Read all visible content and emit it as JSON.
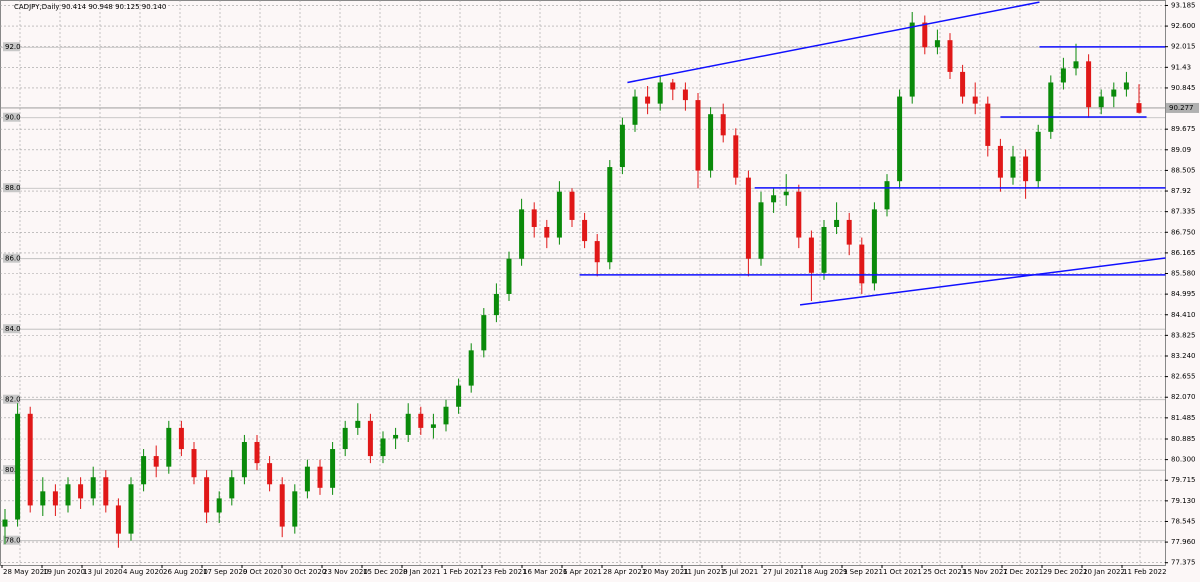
{
  "chart_data": {
    "type": "candlestick",
    "title": "CADJPY,Daily  90.414 90.948 90.125 90.140",
    "ylim": [
      77.31,
      93.34
    ],
    "yticks": [
      93.185,
      {
        "value": 92.6,
        "label": "92.600"
      },
      92.015,
      91.43,
      90.845,
      89.675,
      89.09,
      88.505,
      87.92,
      87.335,
      {
        "value": 86.75,
        "label": "86.750"
      },
      86.165,
      {
        "value": 85.58,
        "label": "85.580"
      },
      84.995,
      {
        "value": 84.41,
        "label": "84.410"
      },
      83.825,
      {
        "value": 83.24,
        "label": "83.240"
      },
      82.655,
      {
        "value": 82.07,
        "label": "82.070"
      },
      81.485,
      80.885,
      {
        "value": 80.3,
        "label": "80.300"
      },
      79.715,
      {
        "value": 79.13,
        "label": "79.130"
      },
      78.545,
      {
        "value": 77.96,
        "label": "77.960"
      },
      77.375
    ],
    "levels": [
      {
        "value": 92,
        "label": "92.0"
      },
      {
        "value": 90,
        "label": "90.0"
      },
      {
        "value": 88,
        "label": "88.0"
      },
      {
        "value": 86,
        "label": "86.0"
      },
      {
        "value": 84,
        "label": "84.0"
      },
      {
        "value": 82,
        "label": "82.0"
      },
      {
        "value": 80,
        "label": "80.0"
      },
      {
        "value": 78,
        "label": "78.0"
      }
    ],
    "price_line": 90.277,
    "xlabels": [
      "28 May 2020",
      "19 Jun 2020",
      "13 Jul 2020",
      "4 Aug 2020",
      "26 Aug 2020",
      "17 Sep 2020",
      "9 Oct 2020",
      "30 Oct 2020",
      "23 Nov 2020",
      "15 Dec 2020",
      "8 Jan 2021",
      "1 Feb 2021",
      "23 Feb 2021",
      "16 Mar 2021",
      "6 Apr 2021",
      "28 Apr 2021",
      "20 May 2021",
      "11 Jun 2021",
      "5 Jul 2021",
      "27 Jul 2021",
      "18 Aug 2021",
      "9 Sep 2021",
      "1 Oct 2021",
      "25 Oct 2021",
      "15 Nov 2021",
      "7 Dec 2021",
      "29 Dec 2021",
      "20 Jan 2022",
      "11 Feb 2022"
    ],
    "up_color": "#0a8a0a",
    "down_color": "#e01818",
    "line_color": "#1010ff",
    "candles": [
      [
        78.4,
        78.9,
        77.9,
        78.6
      ],
      [
        78.6,
        81.9,
        78.4,
        81.6
      ],
      [
        81.6,
        81.8,
        78.8,
        79.0
      ],
      [
        79.0,
        79.8,
        78.7,
        79.4
      ],
      [
        79.4,
        79.6,
        78.7,
        79.0
      ],
      [
        79.0,
        79.8,
        78.8,
        79.6
      ],
      [
        79.6,
        79.8,
        78.9,
        79.2
      ],
      [
        79.2,
        80.1,
        79.0,
        79.8
      ],
      [
        79.8,
        80.0,
        78.8,
        79.0
      ],
      [
        79.0,
        79.2,
        77.8,
        78.2
      ],
      [
        78.2,
        79.8,
        78.0,
        79.6
      ],
      [
        79.6,
        80.6,
        79.4,
        80.4
      ],
      [
        80.4,
        80.7,
        79.8,
        80.1
      ],
      [
        80.1,
        81.4,
        79.9,
        81.2
      ],
      [
        81.2,
        81.4,
        80.4,
        80.6
      ],
      [
        80.6,
        80.8,
        79.6,
        79.8
      ],
      [
        79.8,
        80.0,
        78.5,
        78.8
      ],
      [
        78.8,
        79.4,
        78.5,
        79.2
      ],
      [
        79.2,
        80.0,
        79.0,
        79.8
      ],
      [
        79.8,
        81.0,
        79.6,
        80.8
      ],
      [
        80.8,
        81.0,
        80.0,
        80.2
      ],
      [
        80.2,
        80.4,
        79.4,
        79.6
      ],
      [
        79.6,
        79.8,
        78.1,
        78.4
      ],
      [
        78.4,
        79.6,
        78.2,
        79.4
      ],
      [
        79.4,
        80.3,
        79.2,
        80.1
      ],
      [
        80.1,
        80.3,
        79.3,
        79.5
      ],
      [
        79.5,
        80.8,
        79.3,
        80.6
      ],
      [
        80.6,
        81.4,
        80.4,
        81.2
      ],
      [
        81.2,
        81.9,
        81.0,
        81.4
      ],
      [
        81.4,
        81.6,
        80.2,
        80.4
      ],
      [
        80.4,
        81.1,
        80.2,
        80.9
      ],
      [
        80.9,
        81.2,
        80.6,
        81.0
      ],
      [
        81.0,
        81.9,
        80.8,
        81.6
      ],
      [
        81.6,
        81.8,
        81.0,
        81.2
      ],
      [
        81.2,
        81.6,
        80.9,
        81.3
      ],
      [
        81.3,
        82.0,
        81.1,
        81.8
      ],
      [
        81.8,
        82.6,
        81.6,
        82.4
      ],
      [
        82.4,
        83.6,
        82.2,
        83.4
      ],
      [
        83.4,
        84.6,
        83.2,
        84.4
      ],
      [
        84.4,
        85.3,
        84.2,
        85.0
      ],
      [
        85.0,
        86.2,
        84.8,
        86.0
      ],
      [
        86.0,
        87.7,
        85.8,
        87.4
      ],
      [
        87.4,
        87.6,
        86.6,
        86.9
      ],
      [
        86.9,
        87.1,
        86.3,
        86.6
      ],
      [
        86.6,
        88.2,
        86.4,
        87.9
      ],
      [
        87.9,
        88.0,
        86.9,
        87.1
      ],
      [
        87.1,
        87.3,
        86.3,
        86.5
      ],
      [
        86.5,
        86.7,
        85.5,
        85.9
      ],
      [
        85.9,
        88.8,
        85.7,
        88.6
      ],
      [
        88.6,
        90.0,
        88.4,
        89.8
      ],
      [
        89.8,
        90.8,
        89.6,
        90.6
      ],
      [
        90.6,
        90.9,
        90.1,
        90.4
      ],
      [
        90.4,
        91.2,
        90.2,
        91.0
      ],
      [
        91.0,
        91.1,
        90.5,
        90.8
      ],
      [
        90.8,
        91.0,
        90.2,
        90.5
      ],
      [
        90.5,
        90.7,
        88.0,
        88.5
      ],
      [
        88.5,
        90.3,
        88.3,
        90.1
      ],
      [
        90.1,
        90.4,
        89.3,
        89.5
      ],
      [
        89.5,
        89.7,
        88.1,
        88.3
      ],
      [
        88.3,
        88.5,
        85.5,
        86.0
      ],
      [
        86.0,
        87.9,
        85.8,
        87.6
      ],
      [
        87.6,
        88.0,
        87.3,
        87.8
      ],
      [
        87.8,
        88.4,
        87.5,
        87.9
      ],
      [
        87.9,
        88.1,
        86.3,
        86.6
      ],
      [
        86.6,
        86.8,
        84.8,
        85.6
      ],
      [
        85.6,
        87.1,
        85.4,
        86.9
      ],
      [
        86.9,
        87.6,
        86.7,
        87.1
      ],
      [
        87.1,
        87.3,
        86.1,
        86.4
      ],
      [
        86.4,
        86.6,
        85.0,
        85.3
      ],
      [
        85.3,
        87.6,
        85.1,
        87.4
      ],
      [
        87.4,
        88.4,
        87.2,
        88.2
      ],
      [
        88.2,
        90.8,
        88.0,
        90.6
      ],
      [
        90.6,
        93.0,
        90.4,
        92.7
      ],
      [
        92.7,
        92.9,
        91.8,
        92.0
      ],
      [
        92.0,
        92.5,
        91.8,
        92.2
      ],
      [
        92.2,
        92.4,
        91.1,
        91.3
      ],
      [
        91.3,
        91.5,
        90.4,
        90.6
      ],
      [
        90.6,
        91.0,
        90.1,
        90.4
      ],
      [
        90.4,
        90.6,
        88.9,
        89.2
      ],
      [
        89.2,
        89.4,
        87.9,
        88.3
      ],
      [
        88.3,
        89.2,
        88.1,
        88.9
      ],
      [
        88.9,
        89.1,
        87.7,
        88.2
      ],
      [
        88.2,
        89.8,
        88.0,
        89.6
      ],
      [
        89.6,
        91.2,
        89.4,
        91.0
      ],
      [
        91.0,
        91.7,
        90.8,
        91.4
      ],
      [
        91.4,
        92.1,
        91.2,
        91.6
      ],
      [
        91.6,
        91.8,
        90.0,
        90.3
      ],
      [
        90.3,
        90.8,
        90.1,
        90.6
      ],
      [
        90.6,
        91.0,
        90.3,
        90.8
      ],
      [
        90.8,
        91.3,
        90.6,
        91.0
      ],
      [
        90.414,
        90.948,
        90.125,
        90.14
      ]
    ],
    "trend_lines": [
      {
        "x": [
          49.4,
          82.1
        ],
        "y": [
          91.0,
          93.28
        ]
      },
      {
        "x": [
          82.1,
          92.1
        ],
        "y": [
          92.01,
          92.01
        ]
      },
      {
        "x": [
          79,
          90.6
        ],
        "y": [
          90.02,
          90.02
        ]
      },
      {
        "x": [
          59.5,
          92.1
        ],
        "y": [
          88.01,
          88.01
        ]
      },
      {
        "x": [
          45.6,
          92.1
        ],
        "y": [
          85.54,
          85.54
        ]
      },
      {
        "x": [
          63.1,
          92.1
        ],
        "y": [
          84.69,
          86.02
        ]
      }
    ]
  }
}
